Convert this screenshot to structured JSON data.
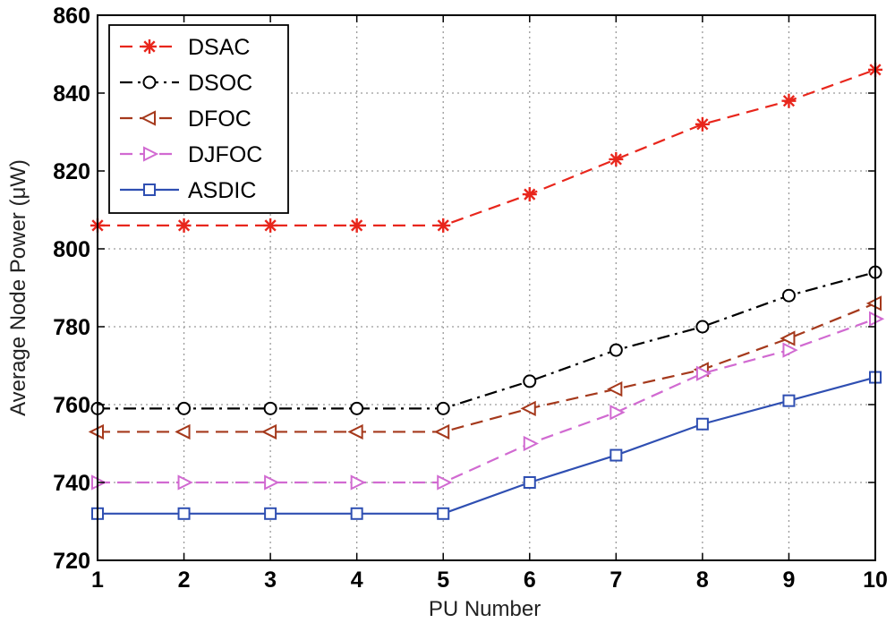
{
  "chart_data": {
    "type": "line",
    "xlabel": "PU Number",
    "ylabel": "Average Node Power (μW)",
    "x": [
      1,
      2,
      3,
      4,
      5,
      6,
      7,
      8,
      9,
      10
    ],
    "xlim": [
      1,
      10
    ],
    "ylim": [
      720,
      860
    ],
    "xticks": [
      1,
      2,
      3,
      4,
      5,
      6,
      7,
      8,
      9,
      10
    ],
    "yticks": [
      720,
      740,
      760,
      780,
      800,
      820,
      840,
      860
    ],
    "grid": true,
    "legend_position": "top-left",
    "series": [
      {
        "name": "DSAC",
        "color": "#e8261c",
        "marker": "star",
        "dash": "dashed",
        "values": [
          806,
          806,
          806,
          806,
          806,
          814,
          823,
          832,
          838,
          846
        ]
      },
      {
        "name": "DSOC",
        "color": "#000000",
        "marker": "circle",
        "dash": "dashdot",
        "values": [
          759,
          759,
          759,
          759,
          759,
          766,
          774,
          780,
          788,
          794
        ]
      },
      {
        "name": "DFOC",
        "color": "#a5391c",
        "marker": "triangle-left",
        "dash": "dashed",
        "values": [
          753,
          753,
          753,
          753,
          753,
          759,
          764,
          769,
          777,
          786
        ]
      },
      {
        "name": "DJFOC",
        "color": "#d16ad1",
        "marker": "triangle-right",
        "dash": "dashed",
        "values": [
          740,
          740,
          740,
          740,
          740,
          750,
          758,
          768,
          774,
          782
        ]
      },
      {
        "name": "ASDIC",
        "color": "#2f4fb2",
        "marker": "square",
        "dash": "solid",
        "values": [
          732,
          732,
          732,
          732,
          732,
          740,
          747,
          755,
          761,
          767
        ]
      }
    ]
  }
}
